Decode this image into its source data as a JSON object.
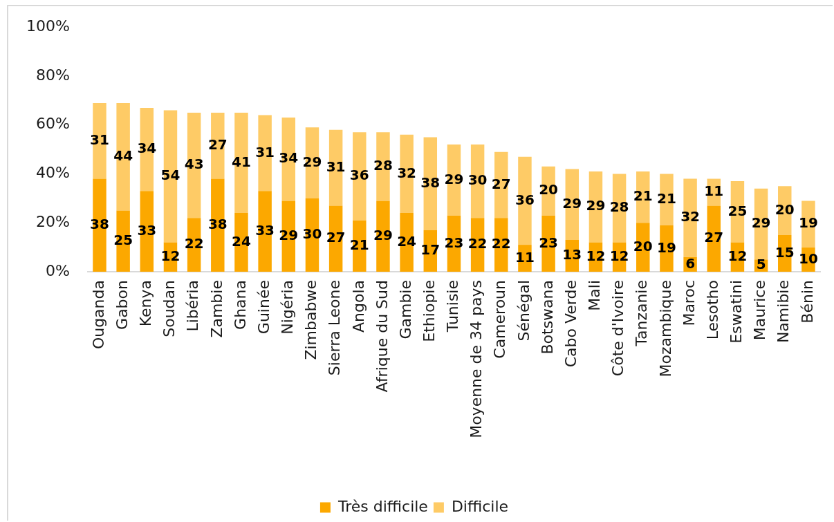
{
  "chart_data": {
    "type": "bar",
    "stacked": true,
    "categories": [
      "Ouganda",
      "Gabon",
      "Kenya",
      "Soudan",
      "Libéria",
      "Zambie",
      "Ghana",
      "Guinée",
      "Nigéria",
      "Zimbabwe",
      "Sierra Leone",
      "Angola",
      "Afrique du Sud",
      "Gambie",
      "Ethiopie",
      "Tunisie",
      "Moyenne de 34 pays",
      "Cameroun",
      "Sénégal",
      "Botswana",
      "Cabo Verde",
      "Mali",
      "Côte d'Ivoire",
      "Tanzanie",
      "Mozambique",
      "Maroc",
      "Lesotho",
      "Eswatini",
      "Maurice",
      "Namibie",
      "Bénin"
    ],
    "series": [
      {
        "name": "Très difficile",
        "color": "#fca800",
        "values": [
          38,
          25,
          33,
          12,
          22,
          38,
          24,
          33,
          29,
          30,
          27,
          21,
          29,
          24,
          17,
          23,
          22,
          22,
          11,
          23,
          13,
          12,
          12,
          20,
          19,
          6,
          27,
          12,
          5,
          15,
          10
        ]
      },
      {
        "name": "Difficile",
        "color": "#fecb66",
        "values": [
          31,
          44,
          34,
          54,
          43,
          27,
          41,
          31,
          34,
          29,
          31,
          36,
          28,
          32,
          38,
          29,
          30,
          27,
          36,
          20,
          29,
          29,
          28,
          21,
          21,
          32,
          11,
          25,
          29,
          20,
          19
        ]
      }
    ],
    "ylim": [
      0,
      100
    ],
    "yticks": [
      {
        "value": 0,
        "label": "0%"
      },
      {
        "value": 20,
        "label": "20%"
      },
      {
        "value": 40,
        "label": "40%"
      },
      {
        "value": 60,
        "label": "60%"
      },
      {
        "value": 80,
        "label": "80%"
      },
      {
        "value": 100,
        "label": "100%"
      }
    ],
    "data_labels": true,
    "legend": "bottom",
    "grid": false
  }
}
